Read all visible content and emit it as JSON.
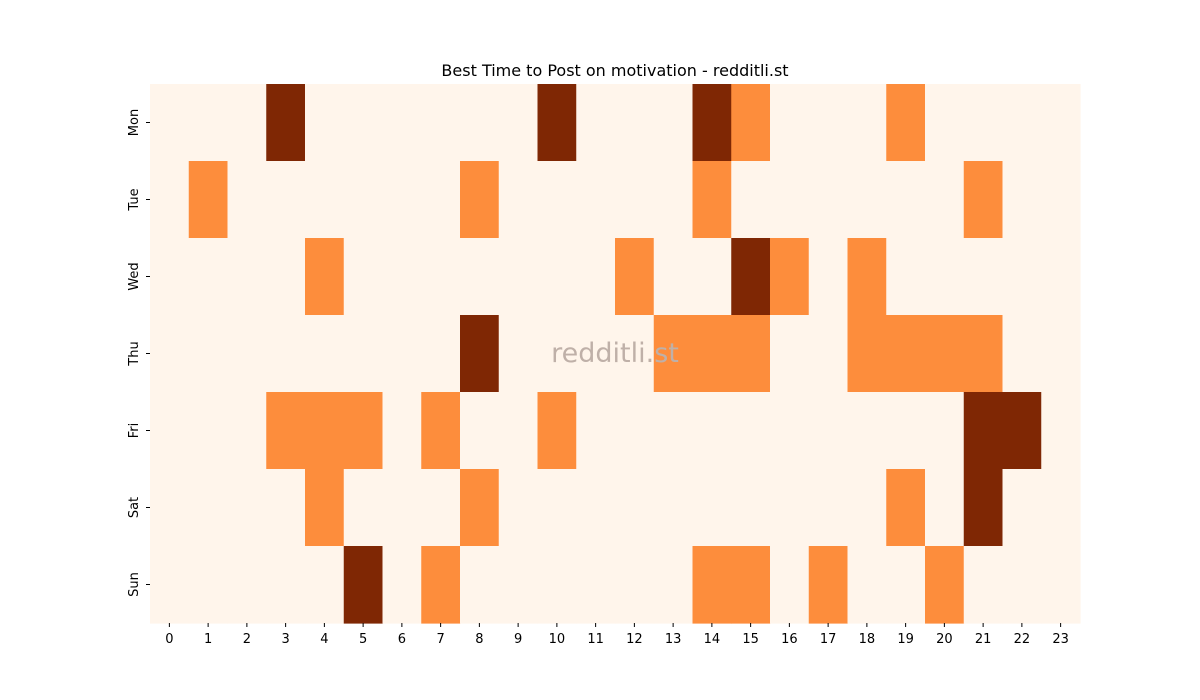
{
  "chart_data": {
    "type": "heatmap",
    "title": "Best Time to Post on motivation - redditli.st",
    "watermark": "redditli.st",
    "x_categories": [
      "0",
      "1",
      "2",
      "3",
      "4",
      "5",
      "6",
      "7",
      "8",
      "9",
      "10",
      "11",
      "12",
      "13",
      "14",
      "15",
      "16",
      "17",
      "18",
      "19",
      "20",
      "21",
      "22",
      "23"
    ],
    "y_categories": [
      "Mon",
      "Tue",
      "Wed",
      "Thu",
      "Fri",
      "Sat",
      "Sun"
    ],
    "values": [
      [
        0,
        0,
        0,
        2,
        0,
        0,
        0,
        0,
        0,
        0,
        2,
        0,
        0,
        0,
        2,
        1,
        0,
        0,
        0,
        1,
        0,
        0,
        0,
        0
      ],
      [
        0,
        1,
        0,
        0,
        0,
        0,
        0,
        0,
        1,
        0,
        0,
        0,
        0,
        0,
        1,
        0,
        0,
        0,
        0,
        0,
        0,
        1,
        0,
        0
      ],
      [
        0,
        0,
        0,
        0,
        1,
        0,
        0,
        0,
        0,
        0,
        0,
        0,
        1,
        0,
        0,
        2,
        1,
        0,
        1,
        0,
        0,
        0,
        0,
        0
      ],
      [
        0,
        0,
        0,
        0,
        0,
        0,
        0,
        0,
        2,
        0,
        0,
        0,
        0,
        1,
        1,
        1,
        0,
        0,
        1,
        1,
        1,
        1,
        0,
        0
      ],
      [
        0,
        0,
        0,
        1,
        1,
        1,
        0,
        1,
        0,
        0,
        1,
        0,
        0,
        0,
        0,
        0,
        0,
        0,
        0,
        0,
        0,
        2,
        2,
        0
      ],
      [
        0,
        0,
        0,
        0,
        1,
        0,
        0,
        0,
        1,
        0,
        0,
        0,
        0,
        0,
        0,
        0,
        0,
        0,
        0,
        1,
        0,
        2,
        0,
        0
      ],
      [
        0,
        0,
        0,
        0,
        0,
        2,
        0,
        1,
        0,
        0,
        0,
        0,
        0,
        0,
        1,
        1,
        0,
        1,
        0,
        0,
        1,
        0,
        0,
        0
      ]
    ],
    "color_scale": {
      "0": "#fff5eb",
      "1": "#fd8d3c",
      "2": "#7f2704"
    },
    "legend": "none",
    "grid": false
  }
}
